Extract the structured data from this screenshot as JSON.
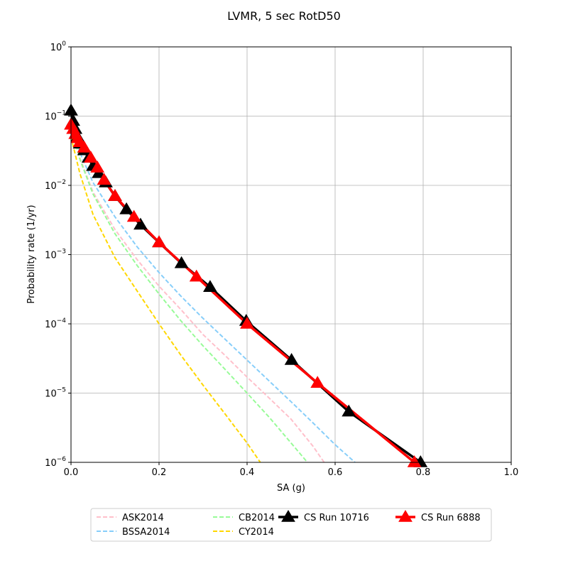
{
  "chart_data": {
    "type": "line",
    "title": "LVMR, 5 sec RotD50",
    "xlabel": "SA (g)",
    "ylabel": "Probability rate (1/yr)",
    "xlim": [
      0,
      1
    ],
    "ylim": [
      1e-06,
      1
    ],
    "yscale": "log",
    "grid": true,
    "legend_position": "bottom-center",
    "x_ticks": [
      {
        "value": 0.0,
        "label": "0.0"
      },
      {
        "value": 0.2,
        "label": "0.2"
      },
      {
        "value": 0.4,
        "label": "0.4"
      },
      {
        "value": 0.6,
        "label": "0.6"
      },
      {
        "value": 0.8,
        "label": "0.8"
      },
      {
        "value": 1.0,
        "label": "1.0"
      }
    ],
    "y_ticks": [
      {
        "value": 1e-06,
        "base": "10",
        "exp": "−6"
      },
      {
        "value": 1e-05,
        "base": "10",
        "exp": "−5"
      },
      {
        "value": 0.0001,
        "base": "10",
        "exp": "−4"
      },
      {
        "value": 0.001,
        "base": "10",
        "exp": "−3"
      },
      {
        "value": 0.01,
        "base": "10",
        "exp": "−2"
      },
      {
        "value": 0.1,
        "base": "10",
        "exp": "−1"
      },
      {
        "value": 1,
        "base": "10",
        "exp": "0"
      }
    ],
    "series": [
      {
        "name": "ASK2014",
        "color": "#ffc0cb",
        "style": "dashed",
        "marker": "none",
        "x": [
          0.0,
          0.02,
          0.05,
          0.1,
          0.15,
          0.2,
          0.25,
          0.3,
          0.35,
          0.4,
          0.45,
          0.5,
          0.55,
          0.575
        ],
        "y": [
          0.07,
          0.025,
          0.008,
          0.0023,
          0.00085,
          0.00035,
          0.00016,
          7e-05,
          3.5e-05,
          1.7e-05,
          8.5e-06,
          4.2e-06,
          1.7e-06,
          1e-06
        ]
      },
      {
        "name": "BSSA2014",
        "color": "#87cefa",
        "style": "dashed",
        "marker": "none",
        "x": [
          0.0,
          0.02,
          0.05,
          0.1,
          0.15,
          0.2,
          0.25,
          0.3,
          0.35,
          0.4,
          0.45,
          0.5,
          0.55,
          0.6,
          0.645
        ],
        "y": [
          0.08,
          0.03,
          0.011,
          0.0035,
          0.0013,
          0.00055,
          0.00025,
          0.00012,
          6e-05,
          3e-05,
          1.5e-05,
          7.5e-06,
          3.7e-06,
          1.8e-06,
          1e-06
        ]
      },
      {
        "name": "CB2014",
        "color": "#98fb98",
        "style": "dashed",
        "marker": "none",
        "x": [
          0.0,
          0.02,
          0.05,
          0.1,
          0.15,
          0.2,
          0.25,
          0.3,
          0.35,
          0.4,
          0.45,
          0.5,
          0.537
        ],
        "y": [
          0.07,
          0.024,
          0.0075,
          0.002,
          0.0007,
          0.00027,
          0.00011,
          4.8e-05,
          2.2e-05,
          1e-05,
          4.5e-06,
          1.9e-06,
          1e-06
        ]
      },
      {
        "name": "CY2014",
        "color": "#ffd700",
        "style": "dashed",
        "marker": "none",
        "x": [
          0.0,
          0.02,
          0.05,
          0.1,
          0.15,
          0.2,
          0.25,
          0.3,
          0.35,
          0.4,
          0.43
        ],
        "y": [
          0.05,
          0.015,
          0.0038,
          0.0009,
          0.0003,
          0.0001,
          3.5e-05,
          1.3e-05,
          5e-06,
          1.9e-06,
          1e-06
        ]
      },
      {
        "name": "CS Run 10716",
        "color": "#000000",
        "style": "solid",
        "marker": "triangle",
        "x": [
          0.0,
          0.005,
          0.01,
          0.015,
          0.02,
          0.03,
          0.04,
          0.05,
          0.063,
          0.079,
          0.1,
          0.126,
          0.158,
          0.2,
          0.251,
          0.316,
          0.398,
          0.501,
          0.631,
          0.794
        ],
        "y": [
          0.12,
          0.085,
          0.065,
          0.05,
          0.04,
          0.032,
          0.025,
          0.019,
          0.015,
          0.011,
          0.007,
          0.0045,
          0.0027,
          0.0015,
          0.00075,
          0.00034,
          0.00011,
          3e-05,
          5.4e-06,
          1e-06
        ]
      },
      {
        "name": "CS Run 6888",
        "color": "#ff0000",
        "style": "solid",
        "marker": "triangle",
        "x": [
          0.0,
          0.005,
          0.01,
          0.015,
          0.02,
          0.03,
          0.045,
          0.06,
          0.075,
          0.1,
          0.143,
          0.2,
          0.285,
          0.4,
          0.56,
          0.78
        ],
        "y": [
          0.075,
          0.065,
          0.055,
          0.048,
          0.042,
          0.035,
          0.025,
          0.018,
          0.012,
          0.007,
          0.0035,
          0.0015,
          0.00048,
          0.0001,
          1.4e-05,
          1e-06
        ]
      }
    ]
  }
}
